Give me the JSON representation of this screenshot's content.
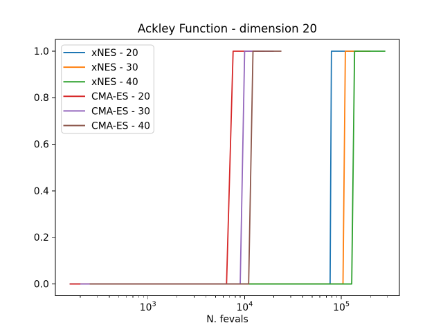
{
  "chart_data": {
    "type": "line",
    "title": "Ackley Function - dimension 20",
    "xlabel": "N. fevals",
    "ylabel": "",
    "xscale": "log",
    "grid": false,
    "legend_position": "upper-left",
    "xlim": [
      110,
      397000
    ],
    "ylim": [
      -0.05,
      1.05
    ],
    "xticks": [
      1000,
      10000,
      100000
    ],
    "xtick_base": "10",
    "xtick_exponents": [
      "3",
      "4",
      "5"
    ],
    "minor_subs": [
      2,
      3,
      4,
      5,
      6,
      7,
      8,
      9
    ],
    "yticks": [
      0.0,
      0.2,
      0.4,
      0.6,
      0.8,
      1.0
    ],
    "ytick_labels": [
      "0.0",
      "0.2",
      "0.4",
      "0.6",
      "0.8",
      "1.0"
    ],
    "series": [
      {
        "name": "xNES - 20",
        "color": "#1f77b4",
        "x": [
          155,
          76500,
          79000,
          150000
        ],
        "y": [
          0,
          0,
          1,
          1
        ]
      },
      {
        "name": "xNES - 30",
        "color": "#ff7f0e",
        "x": [
          200,
          104000,
          110000,
          200000
        ],
        "y": [
          0,
          0,
          1,
          1
        ]
      },
      {
        "name": "xNES - 40",
        "color": "#2ca02c",
        "x": [
          250,
          128000,
          137000,
          285000
        ],
        "y": [
          0,
          0,
          1,
          1
        ]
      },
      {
        "name": "CMA-ES - 20",
        "color": "#d62728",
        "x": [
          155,
          6500,
          7600,
          16000
        ],
        "y": [
          0,
          0,
          1,
          1
        ]
      },
      {
        "name": "CMA-ES - 30",
        "color": "#9467bd",
        "x": [
          200,
          9000,
          10000,
          20000
        ],
        "y": [
          0,
          0,
          1,
          1
        ]
      },
      {
        "name": "CMA-ES - 40",
        "color": "#8c564b",
        "x": [
          250,
          11000,
          12200,
          24000
        ],
        "y": [
          0,
          0,
          1,
          1
        ]
      }
    ],
    "colors": {
      "spine": "#000000",
      "legend_border": "#cccccc",
      "legend_bg": "#ffffff"
    }
  }
}
